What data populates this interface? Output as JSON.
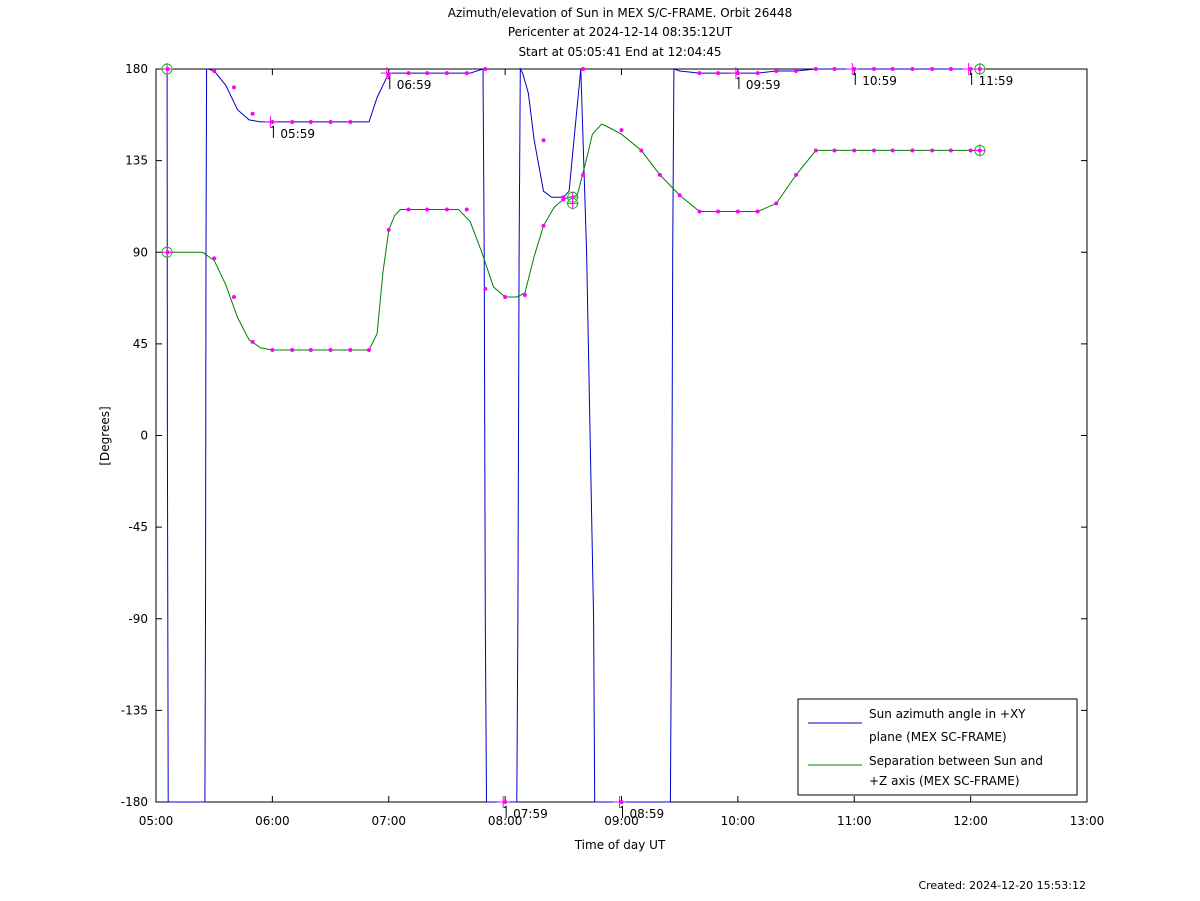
{
  "chart_data": {
    "type": "line",
    "title_lines": [
      "Azimuth/elevation of Sun in MEX S/C-FRAME.  Orbit 26448",
      "Pericenter at 2024-12-14 08:35:12UT",
      "Start at 05:05:41 End at 12:04:45"
    ],
    "xlabel": "Time of day UT",
    "ylabel": "[Degrees]",
    "xlim": [
      5,
      13
    ],
    "ylim": [
      -180,
      180
    ],
    "x_ticks": [
      {
        "v": 5,
        "label": "05:00"
      },
      {
        "v": 6,
        "label": "06:00"
      },
      {
        "v": 7,
        "label": "07:00"
      },
      {
        "v": 8,
        "label": "08:00"
      },
      {
        "v": 9,
        "label": "09:00"
      },
      {
        "v": 10,
        "label": "10:00"
      },
      {
        "v": 11,
        "label": "11:00"
      },
      {
        "v": 12,
        "label": "12:00"
      },
      {
        "v": 13,
        "label": "13:00"
      }
    ],
    "y_ticks": [
      {
        "v": 180,
        "label": "180"
      },
      {
        "v": 135,
        "label": "135"
      },
      {
        "v": 90,
        "label": "90"
      },
      {
        "v": 45,
        "label": "45"
      },
      {
        "v": 0,
        "label": "0"
      },
      {
        "v": -45,
        "label": "-45"
      },
      {
        "v": -90,
        "label": "-90"
      },
      {
        "v": -135,
        "label": "-135"
      },
      {
        "v": -180,
        "label": "-180"
      }
    ],
    "grid": false,
    "legend_position": "bottom-right",
    "series": [
      {
        "name": "Sun azimuth angle in +XY plane (MEX SC-FRAME)",
        "legend_lines": [
          "Sun azimuth angle in +XY",
          "plane (MEX SC-FRAME)"
        ],
        "color": "#0000cc",
        "x": [
          5.095,
          5.098,
          5.105,
          5.108,
          5.42,
          5.425,
          5.43,
          5.435,
          5.45,
          5.5,
          5.6,
          5.7,
          5.8,
          5.9,
          6.0,
          6.17,
          6.33,
          6.5,
          6.67,
          6.83,
          6.9,
          7.0,
          7.1,
          7.3,
          7.5,
          7.7,
          7.81,
          7.82,
          7.83,
          7.84,
          7.85,
          8.1,
          8.11,
          8.12,
          8.13,
          8.15,
          8.2,
          8.25,
          8.33,
          8.4,
          8.5,
          8.55,
          8.6,
          8.65,
          8.7,
          8.76,
          8.77,
          8.78,
          8.79,
          9.0,
          9.3,
          9.42,
          9.43,
          9.44,
          9.45,
          9.5,
          9.67,
          9.83,
          10.0,
          10.17,
          10.33,
          10.5,
          10.67,
          10.83,
          11.0,
          11.17,
          11.33,
          11.5,
          11.67,
          11.83,
          12.0,
          12.079
        ],
        "y": [
          180,
          0,
          -180,
          -180,
          -180,
          -90,
          90,
          180,
          180,
          179,
          172,
          160,
          155,
          154,
          154,
          154,
          154,
          154,
          154,
          154,
          166,
          178,
          178,
          178,
          178,
          178,
          180,
          90,
          -90,
          -180,
          -180,
          -180,
          -90,
          90,
          180,
          178,
          168,
          145,
          120,
          117,
          117,
          120,
          150,
          180,
          90,
          -90,
          -180,
          -180,
          -180,
          -180,
          -180,
          -180,
          -90,
          90,
          180,
          179,
          178,
          178,
          178,
          178,
          179,
          179,
          180,
          180,
          180,
          180,
          180,
          180,
          180,
          180,
          180,
          180
        ]
      },
      {
        "name": "Separation between Sun and +Z axis (MEX SC-FRAME)",
        "legend_lines": [
          "Separation between Sun and",
          "+Z axis (MEX SC-FRAME)"
        ],
        "color": "#008000",
        "x": [
          5.095,
          5.2,
          5.3,
          5.4,
          5.5,
          5.6,
          5.7,
          5.8,
          5.9,
          6.0,
          6.17,
          6.33,
          6.5,
          6.67,
          6.83,
          6.9,
          6.95,
          7.0,
          7.05,
          7.1,
          7.2,
          7.3,
          7.5,
          7.6,
          7.7,
          7.8,
          7.9,
          8.0,
          8.1,
          8.17,
          8.25,
          8.33,
          8.42,
          8.5,
          8.55,
          8.62,
          8.7,
          8.75,
          8.83,
          8.9,
          9.0,
          9.17,
          9.33,
          9.5,
          9.67,
          9.83,
          10.0,
          10.17,
          10.33,
          10.5,
          10.67,
          10.83,
          11.0,
          11.17,
          11.33,
          11.5,
          11.67,
          11.83,
          12.0,
          12.079
        ],
        "y": [
          90,
          90,
          90,
          90,
          86,
          74,
          58,
          47,
          43,
          42,
          42,
          42,
          42,
          42,
          42,
          50,
          80,
          101,
          108,
          111,
          111,
          111,
          111,
          111,
          105,
          90,
          73,
          68,
          68,
          70,
          88,
          103,
          112,
          116,
          117,
          118,
          136,
          148,
          153,
          151,
          148,
          140,
          128,
          118,
          110,
          110,
          110,
          110,
          114,
          128,
          140,
          140,
          140,
          140,
          140,
          140,
          140,
          140,
          140,
          140
        ]
      }
    ],
    "markers": [
      {
        "series": 0,
        "x": [
          5.1,
          5.5,
          5.67,
          5.83,
          6.0,
          6.17,
          6.33,
          6.5,
          6.67,
          7.0,
          7.17,
          7.33,
          7.5,
          7.67,
          7.83,
          8.0,
          8.33,
          8.5,
          8.67,
          9.0,
          9.67,
          9.83,
          10.0,
          10.17,
          10.33,
          10.5,
          10.67,
          10.83,
          11.0,
          11.17,
          11.33,
          11.5,
          11.67,
          11.83,
          12.0,
          12.079
        ],
        "y": [
          180,
          179,
          171,
          158,
          154,
          154,
          154,
          154,
          154,
          177,
          178,
          178,
          178,
          178,
          180,
          -180,
          145,
          117,
          180,
          -180,
          178,
          178,
          178,
          178,
          179,
          179,
          180,
          180,
          180,
          180,
          180,
          180,
          180,
          180,
          180,
          180
        ]
      },
      {
        "series": 1,
        "x": [
          5.1,
          5.5,
          5.67,
          5.83,
          6.0,
          6.17,
          6.33,
          6.5,
          6.67,
          6.83,
          7.0,
          7.17,
          7.33,
          7.5,
          7.67,
          7.83,
          8.0,
          8.17,
          8.33,
          8.5,
          8.67,
          9.0,
          9.17,
          9.33,
          9.5,
          9.67,
          9.83,
          10.0,
          10.17,
          10.33,
          10.5,
          10.67,
          10.83,
          11.0,
          11.17,
          11.33,
          11.5,
          11.67,
          11.83,
          12.0,
          12.079
        ],
        "y": [
          90,
          87,
          68,
          46,
          42,
          42,
          42,
          42,
          42,
          42,
          101,
          111,
          111,
          111,
          111,
          72,
          68,
          69,
          103,
          116,
          128,
          150,
          140,
          128,
          118,
          110,
          110,
          110,
          110,
          114,
          128,
          140,
          140,
          140,
          140,
          140,
          140,
          140,
          140,
          140,
          140
        ]
      }
    ],
    "start_end_circles": [
      {
        "x": 5.095,
        "y": 180
      },
      {
        "x": 5.095,
        "y": 90
      },
      {
        "x": 8.58,
        "y": 117
      },
      {
        "x": 8.58,
        "y": 114
      },
      {
        "x": 12.079,
        "y": 180
      },
      {
        "x": 12.079,
        "y": 140
      }
    ],
    "hour_annotations": [
      {
        "x": 5.983,
        "y": 154,
        "label": "05:59",
        "side": "below"
      },
      {
        "x": 6.983,
        "y": 178,
        "label": "06:59",
        "side": "below"
      },
      {
        "x": 7.983,
        "y": -180,
        "label": "07:59",
        "side": "below"
      },
      {
        "x": 8.983,
        "y": -180,
        "label": "08:59",
        "side": "below"
      },
      {
        "x": 9.983,
        "y": 178,
        "label": "09:59",
        "side": "below"
      },
      {
        "x": 10.983,
        "y": 180,
        "label": "10:59",
        "side": "below"
      },
      {
        "x": 11.983,
        "y": 180,
        "label": "11:59",
        "side": "below"
      }
    ]
  },
  "footer": {
    "created": "Created: 2024-12-20 15:53:12"
  }
}
